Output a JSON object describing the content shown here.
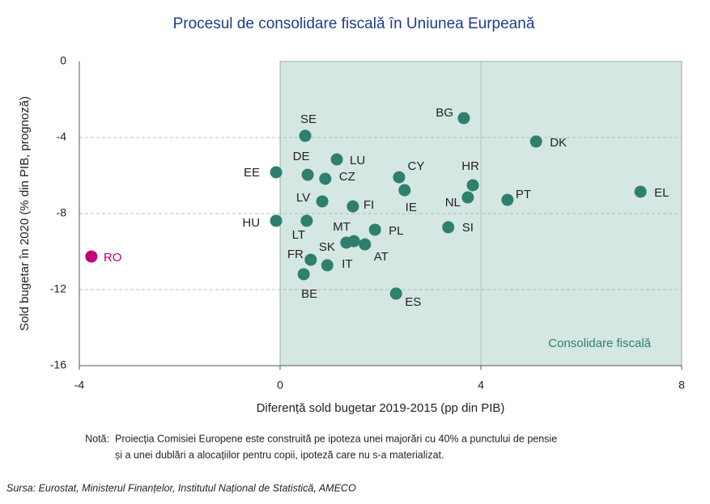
{
  "chart_data": {
    "type": "scatter",
    "title": "Procesul de consolidare fiscală în Uniunea Eurpeană",
    "x_label": "Diferență sold bugetar 2019-2015 (pp din PIB)",
    "y_label": "Sold bugetar în 2020 (% din PIB, prognoză)",
    "labels": [
      "RO",
      "EE",
      "HU",
      "SE",
      "DE",
      "LU",
      "CZ",
      "LV",
      "FI",
      "LT",
      "MT",
      "SK",
      "AT",
      "FR",
      "IT",
      "BE",
      "PL",
      "CY",
      "IE",
      "ES",
      "BG",
      "HR",
      "NL",
      "SI",
      "PT",
      "DK",
      "EL"
    ],
    "x": [
      -3.76,
      -0.08,
      -0.08,
      0.5,
      0.55,
      1.13,
      0.9,
      0.84,
      1.45,
      0.53,
      1.47,
      1.32,
      1.69,
      0.61,
      0.94,
      0.47,
      1.89,
      2.37,
      2.48,
      2.31,
      3.66,
      3.84,
      3.74,
      3.35,
      4.53,
      5.1,
      7.18
    ],
    "y": [
      -10.26,
      -5.83,
      -8.38,
      -3.91,
      -5.96,
      -5.15,
      -6.17,
      -7.36,
      -7.62,
      -8.38,
      -9.45,
      -9.53,
      -9.62,
      -10.43,
      -10.72,
      -11.19,
      -8.85,
      -6.09,
      -6.77,
      -12.21,
      -2.98,
      -6.51,
      -7.15,
      -8.72,
      -7.28,
      -4.21,
      -6.85
    ],
    "colors": [
      "#c0007a",
      "#2e7f6e",
      "#2e7f6e",
      "#2e7f6e",
      "#2e7f6e",
      "#2e7f6e",
      "#2e7f6e",
      "#2e7f6e",
      "#2e7f6e",
      "#2e7f6e",
      "#2e7f6e",
      "#2e7f6e",
      "#2e7f6e",
      "#2e7f6e",
      "#2e7f6e",
      "#2e7f6e",
      "#2e7f6e",
      "#2e7f6e",
      "#2e7f6e",
      "#2e7f6e",
      "#2e7f6e",
      "#2e7f6e",
      "#2e7f6e",
      "#2e7f6e",
      "#2e7f6e",
      "#2e7f6e",
      "#2e7f6e"
    ],
    "label_colors": [
      "#c0007a",
      "#222222",
      "#222222",
      "#222222",
      "#222222",
      "#222222",
      "#222222",
      "#222222",
      "#222222",
      "#222222",
      "#222222",
      "#222222",
      "#222222",
      "#222222",
      "#222222",
      "#222222",
      "#222222",
      "#222222",
      "#222222",
      "#222222",
      "#222222",
      "#222222",
      "#222222",
      "#222222",
      "#222222",
      "#222222",
      "#222222"
    ],
    "xlim": [
      -4,
      8
    ],
    "xticks": [
      -4,
      0,
      4,
      8
    ],
    "ylim": [
      -16,
      0
    ],
    "yticks": [
      -16,
      -12,
      -8,
      -4,
      0
    ],
    "grid": true,
    "reference_lines_x": [
      4
    ],
    "shaded_region": {
      "xlim": [
        0,
        8
      ],
      "label": "Consolidare fiscală",
      "color": "#d5e7e3"
    },
    "note": {
      "label": "Notă:",
      "lines": [
        "Proiecția Comisiei Europene este construită pe ipoteza unei majorări cu 40% a punctului de pensie",
        "și a unei dublări a alocațiilor pentru copii, ipoteză care nu s-a materializat."
      ]
    },
    "source": "Sursa: Eurostat, Ministerul Finanțelor, Institutul Național de Statistică, AMECO"
  }
}
